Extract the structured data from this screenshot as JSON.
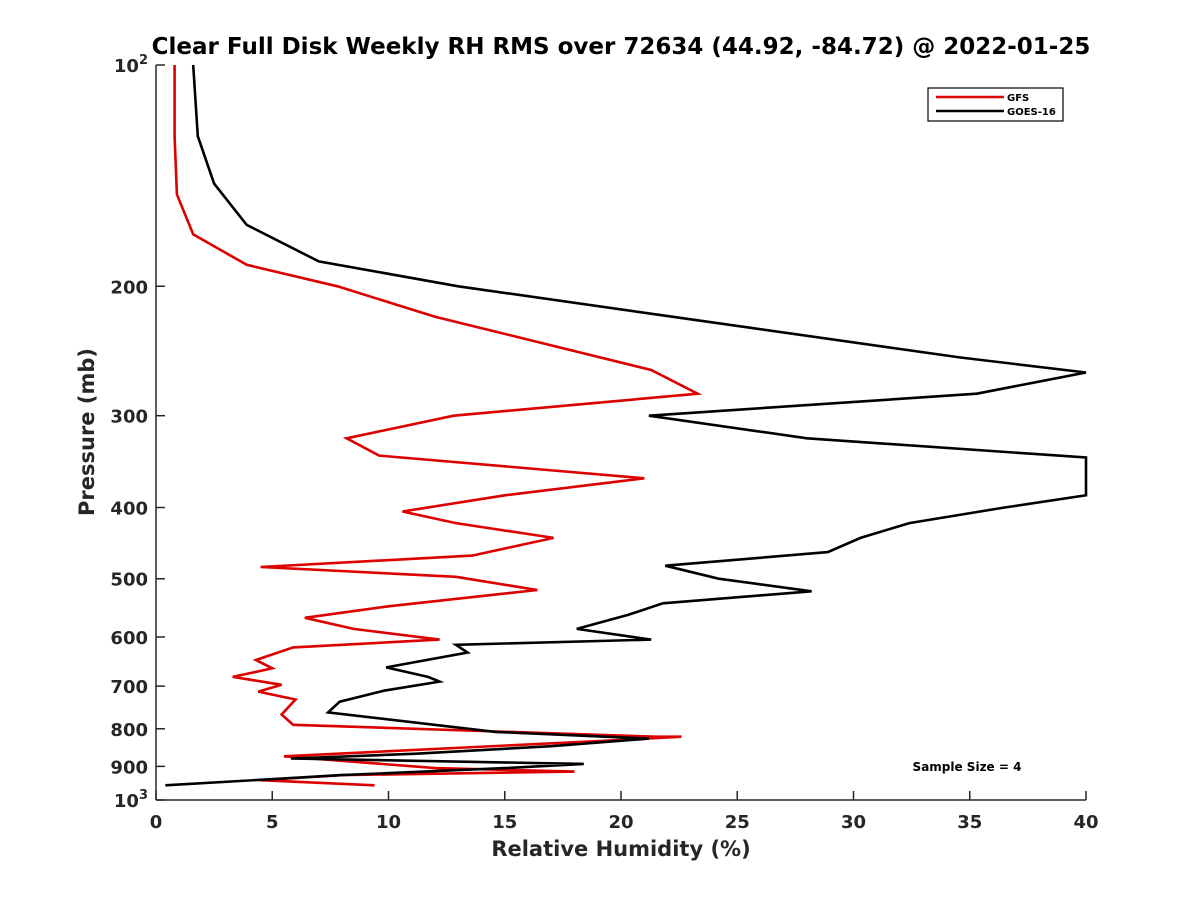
{
  "chart_data": {
    "type": "line",
    "title": "Clear Full Disk Weekly RH RMS over 72634 (44.92, -84.72) @ 2022-01-25",
    "xlabel": "Relative Humidity (%)",
    "ylabel": "Pressure (mb)",
    "xlim": [
      0,
      40
    ],
    "ylim": [
      100,
      1000
    ],
    "yscale": "log",
    "yreversed": true,
    "x_ticks": [
      0,
      5,
      10,
      15,
      20,
      25,
      30,
      35,
      40
    ],
    "x_tick_labels": [
      "0",
      "5",
      "10",
      "15",
      "20",
      "25",
      "30",
      "35",
      "40"
    ],
    "y_ticks": [
      100,
      200,
      300,
      400,
      500,
      600,
      700,
      800,
      900,
      1000
    ],
    "y_tick_labels": [
      {
        "base": "10",
        "exp": "2"
      },
      {
        "base": "200",
        "exp": ""
      },
      {
        "base": "300",
        "exp": ""
      },
      {
        "base": "400",
        "exp": ""
      },
      {
        "base": "500",
        "exp": ""
      },
      {
        "base": "600",
        "exp": ""
      },
      {
        "base": "700",
        "exp": ""
      },
      {
        "base": "800",
        "exp": ""
      },
      {
        "base": "900",
        "exp": ""
      },
      {
        "base": "10",
        "exp": "3"
      }
    ],
    "grid": false,
    "legend_position": "top-right",
    "annotation": "Sample Size = 4",
    "series": [
      {
        "name": "GFS",
        "color": "#dd0000",
        "points": [
          [
            0.8,
            100
          ],
          [
            0.8,
            125
          ],
          [
            0.9,
            150
          ],
          [
            1.6,
            170
          ],
          [
            3.9,
            187
          ],
          [
            7.8,
            200
          ],
          [
            12.0,
            220
          ],
          [
            21.3,
            260
          ],
          [
            23.3,
            280
          ],
          [
            12.8,
            300
          ],
          [
            8.2,
            322
          ],
          [
            9.6,
            340
          ],
          [
            21.0,
            365
          ],
          [
            15.0,
            385
          ],
          [
            10.6,
            405
          ],
          [
            12.9,
            420
          ],
          [
            17.1,
            440
          ],
          [
            13.6,
            465
          ],
          [
            4.5,
            482
          ],
          [
            12.9,
            497
          ],
          [
            16.4,
            518
          ],
          [
            10.0,
            545
          ],
          [
            6.4,
            565
          ],
          [
            8.5,
            585
          ],
          [
            12.2,
            605
          ],
          [
            5.9,
            620
          ],
          [
            4.3,
            645
          ],
          [
            5.0,
            662
          ],
          [
            3.3,
            680
          ],
          [
            5.4,
            697
          ],
          [
            4.4,
            712
          ],
          [
            6.0,
            730
          ],
          [
            5.4,
            765
          ],
          [
            5.9,
            790
          ],
          [
            21.5,
            820
          ],
          [
            22.6,
            820
          ],
          [
            19.5,
            830
          ],
          [
            5.5,
            872
          ],
          [
            12.0,
            905
          ],
          [
            18.0,
            915
          ],
          [
            8.0,
            925
          ],
          [
            4.5,
            940
          ],
          [
            9.4,
            955
          ]
        ]
      },
      {
        "name": "GOES-16",
        "color": "#000000",
        "points": [
          [
            1.6,
            100
          ],
          [
            1.8,
            125
          ],
          [
            2.5,
            145
          ],
          [
            3.9,
            165
          ],
          [
            7.0,
            185
          ],
          [
            13.0,
            200
          ],
          [
            22.2,
            220
          ],
          [
            34.6,
            250
          ],
          [
            40.0,
            262
          ],
          [
            35.3,
            280
          ],
          [
            21.2,
            300
          ],
          [
            28.0,
            322
          ],
          [
            40.0,
            342
          ],
          [
            40.0,
            385
          ],
          [
            36.5,
            400
          ],
          [
            32.4,
            420
          ],
          [
            30.3,
            440
          ],
          [
            28.9,
            460
          ],
          [
            21.9,
            480
          ],
          [
            24.2,
            500
          ],
          [
            28.2,
            520
          ],
          [
            21.8,
            540
          ],
          [
            20.3,
            560
          ],
          [
            18.1,
            585
          ],
          [
            21.3,
            605
          ],
          [
            12.9,
            615
          ],
          [
            13.4,
            630
          ],
          [
            9.9,
            660
          ],
          [
            11.7,
            680
          ],
          [
            12.2,
            690
          ],
          [
            9.8,
            710
          ],
          [
            7.9,
            735
          ],
          [
            7.4,
            760
          ],
          [
            14.6,
            808
          ],
          [
            21.2,
            825
          ],
          [
            17.0,
            845
          ],
          [
            11.2,
            865
          ],
          [
            5.8,
            878
          ],
          [
            18.4,
            893
          ],
          [
            15.0,
            905
          ],
          [
            8.0,
            925
          ],
          [
            0.4,
            955
          ]
        ]
      }
    ]
  }
}
